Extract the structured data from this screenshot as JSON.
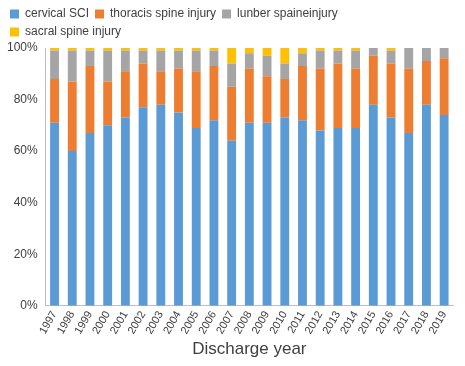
{
  "chart_data": {
    "type": "bar",
    "stacked": true,
    "grid": false,
    "legend": "top",
    "x_label": "Discharge year",
    "categories": [
      "1997",
      "1998",
      "1999",
      "2000",
      "2001",
      "2002",
      "2003",
      "2004",
      "2005",
      "2006",
      "2007",
      "2008",
      "2009",
      "2010",
      "2011",
      "2012",
      "2013",
      "2014",
      "2015",
      "2016",
      "2017",
      "2018",
      "2019"
    ],
    "series": [
      {
        "name": "cervical SCI",
        "color": "#5B9BD5",
        "values": [
          71,
          60,
          67,
          70,
          73,
          77,
          78,
          75,
          69,
          72,
          64,
          71,
          71,
          73,
          72,
          68,
          69,
          69,
          78,
          73,
          67,
          78,
          74
        ]
      },
      {
        "name": "thoracis spine injury",
        "color": "#ED7D31",
        "values": [
          17,
          27,
          26,
          17,
          18,
          17,
          13,
          17,
          22,
          21,
          21,
          21,
          18,
          15,
          21,
          24,
          25,
          23,
          19,
          21,
          25,
          17,
          22
        ]
      },
      {
        "name": "lunber spaineinjury",
        "color": "#A5A5A5",
        "values": [
          11,
          12,
          6,
          12,
          8,
          5,
          8,
          7,
          8,
          6,
          9,
          6,
          8,
          6,
          5,
          7,
          5,
          7,
          3,
          5,
          8,
          5,
          4
        ]
      },
      {
        "name": "sacral spine injury",
        "color": "#FFC000",
        "values": [
          1,
          1,
          1,
          1,
          1,
          1,
          1,
          1,
          1,
          1,
          6,
          2,
          3,
          6,
          2,
          1,
          1,
          1,
          0,
          1,
          0,
          0,
          0
        ]
      }
    ],
    "ylim": [
      0,
      100
    ],
    "yticks": [
      {
        "value": 0,
        "label": "0%"
      },
      {
        "value": 20,
        "label": "20%"
      },
      {
        "value": 40,
        "label": "40%"
      },
      {
        "value": 60,
        "label": "60%"
      },
      {
        "value": 80,
        "label": "80%"
      },
      {
        "value": 100,
        "label": "100%"
      }
    ]
  }
}
